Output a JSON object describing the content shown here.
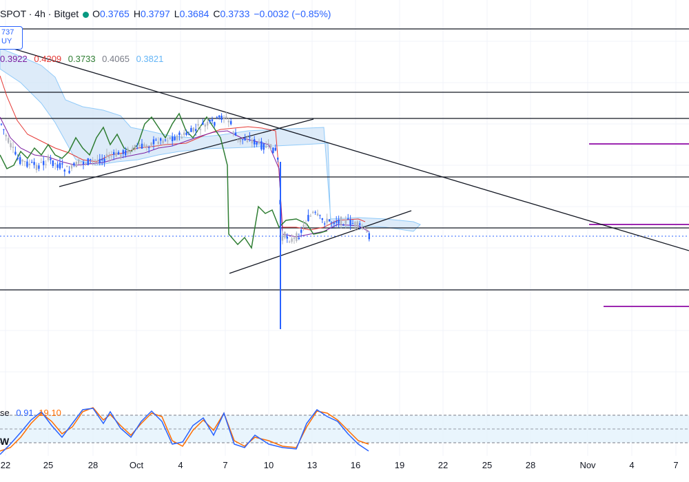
{
  "header": {
    "symbol": "SPOT · 4h · Bitget",
    "o_label": "O",
    "o": "0.3765",
    "h_label": "H",
    "h": "0.3797",
    "l_label": "L",
    "l": "0.3684",
    "c_label": "C",
    "c": "0.3733",
    "change": "−0.0032 (−0.85%)"
  },
  "price_badge": {
    "line1": "737",
    "line2": "UY"
  },
  "ichimoku": {
    "values": [
      "0.3922",
      "0.4209",
      "0.3733",
      "0.4065",
      "0.3821"
    ],
    "colors": [
      "#7b1fa2",
      "#e53935",
      "#2e7d32",
      "#787b86",
      "#64b5f6"
    ]
  },
  "stoch": {
    "label_fragment": "se",
    "k": "0.91",
    "d": "19.10",
    "w_label": "W",
    "k_color": "#2962ff",
    "d_color": "#ff6d00"
  },
  "colors": {
    "candle_up": "#b2b5be",
    "candle_down": "#2962ff",
    "accent": "#2962ff",
    "cloud": "#bbdefb",
    "stoch_band": "#e3f2fd",
    "purple_levels": "#9c27b0"
  },
  "chart_data": {
    "type": "candlestick",
    "title": "",
    "x_ticks": [
      "22",
      "25",
      "28",
      "Oct",
      "4",
      "7",
      "10",
      "13",
      "16",
      "19",
      "22",
      "25",
      "28",
      "Nov",
      "4",
      "7"
    ],
    "approx_close_path": [
      {
        "x": "Sep 21",
        "y": 0.395
      },
      {
        "x": "Sep 22",
        "y": 0.365
      },
      {
        "x": "Sep 24",
        "y": 0.352
      },
      {
        "x": "Sep 26",
        "y": 0.348
      },
      {
        "x": "Sep 28",
        "y": 0.352
      },
      {
        "x": "Oct 1",
        "y": 0.356
      },
      {
        "x": "Oct 3",
        "y": 0.362
      },
      {
        "x": "Oct 5",
        "y": 0.372
      },
      {
        "x": "Oct 7",
        "y": 0.382
      },
      {
        "x": "Oct 8",
        "y": 0.37
      },
      {
        "x": "Oct 9",
        "y": 0.364
      },
      {
        "x": "Oct 10",
        "y": 0.355
      },
      {
        "x": "Oct 10",
        "y": 0.32
      },
      {
        "x": "Oct 11",
        "y": 0.325
      },
      {
        "x": "Oct 12",
        "y": 0.332
      },
      {
        "x": "Oct 13",
        "y": 0.338
      },
      {
        "x": "Oct 14",
        "y": 0.334
      },
      {
        "x": "Oct 15",
        "y": 0.333
      },
      {
        "x": "Oct 16",
        "y": 0.3733
      }
    ],
    "horizontal_levels": [
      0.425,
      0.395,
      0.38,
      0.35,
      0.327,
      0.295
    ],
    "purple_levels": [
      0.365,
      0.33,
      0.29
    ]
  }
}
